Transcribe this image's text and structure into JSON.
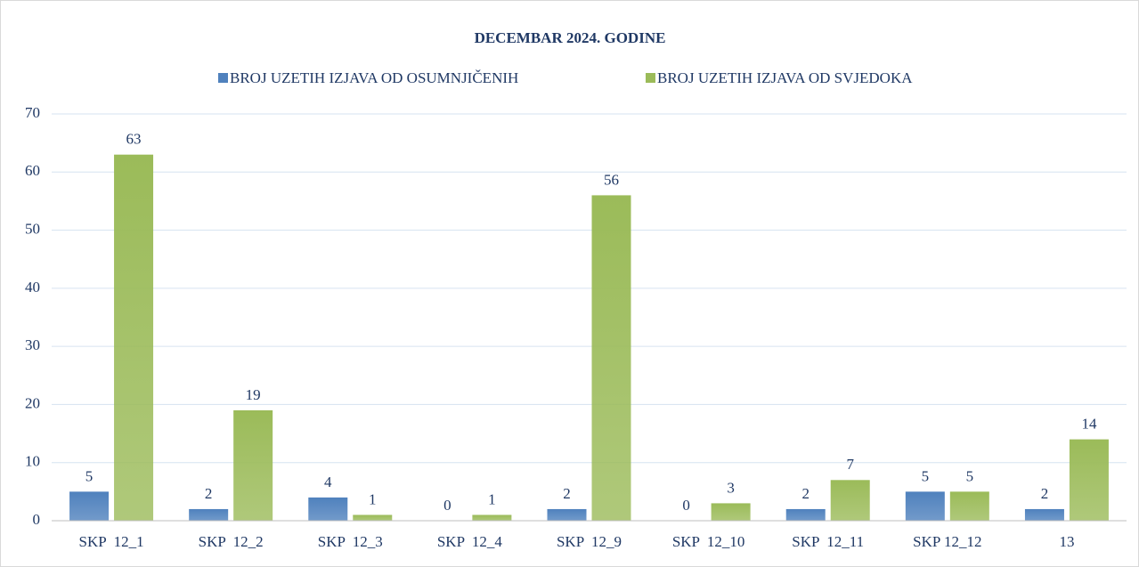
{
  "chart_data": {
    "type": "bar",
    "title": "DECEMBAR 2024. GODINE",
    "categories": [
      "SKP  12_1",
      "SKP  12_2",
      "SKP  12_3",
      "SKP  12_4",
      "SKP  12_9",
      "SKP  12_10",
      "SKP  12_11",
      "SKP 12_12",
      "13"
    ],
    "series": [
      {
        "name": "BROJ UZETIH IZJAVA OD OSUMNJIČENIH",
        "color": "#4f81bd",
        "values": [
          5,
          2,
          4,
          0,
          2,
          0,
          2,
          5,
          2
        ]
      },
      {
        "name": "BROJ UZETIH IZJAVA OD SVJEDOKA",
        "color": "#9bbb59",
        "values": [
          63,
          19,
          1,
          1,
          56,
          3,
          7,
          5,
          14
        ]
      }
    ],
    "ylim": [
      0,
      70
    ],
    "yticks": [
      0,
      10,
      20,
      30,
      40,
      50,
      60,
      70
    ],
    "grid": true,
    "legend": "top"
  }
}
